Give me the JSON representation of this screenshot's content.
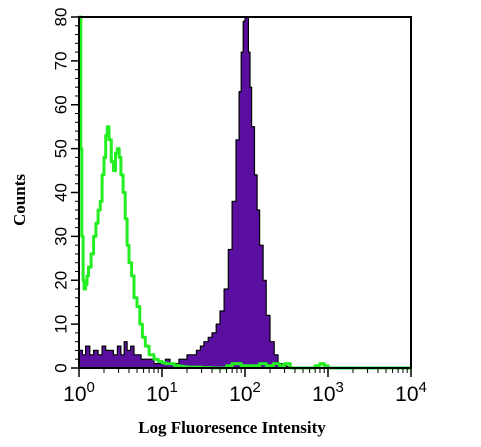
{
  "chart_data": {
    "type": "area",
    "title": "",
    "xlabel": "Log Fluoresence Intensity",
    "ylabel": "Counts",
    "xscale": "log",
    "xlim": [
      1,
      10000
    ],
    "ylim": [
      0,
      80
    ],
    "grid": false,
    "legend": "none",
    "x_ticks": [
      {
        "value": 1,
        "base": "10",
        "exp": "0"
      },
      {
        "value": 10,
        "base": "10",
        "exp": "1"
      },
      {
        "value": 100,
        "base": "10",
        "exp": "2"
      },
      {
        "value": 1000,
        "base": "10",
        "exp": "3"
      },
      {
        "value": 10000,
        "base": "10",
        "exp": "4"
      }
    ],
    "y_ticks": [
      0,
      10,
      20,
      30,
      40,
      50,
      60,
      70,
      80
    ],
    "series": [
      {
        "style": "filled",
        "color": "#5a0fa0",
        "x": [
          1,
          1.1,
          1.2,
          1.35,
          1.5,
          1.7,
          1.9,
          2.1,
          2.3,
          2.6,
          2.9,
          3.2,
          3.5,
          3.8,
          4.2,
          4.6,
          5.1,
          5.6,
          6.2,
          7,
          8,
          9,
          10,
          11,
          12.5,
          14,
          16,
          18,
          20,
          23,
          26,
          29,
          32,
          36,
          40,
          45,
          50,
          56,
          63,
          70,
          78,
          85,
          90,
          95,
          100,
          105,
          110,
          115,
          120,
          130,
          140,
          150,
          165,
          180,
          200,
          225,
          250,
          280,
          320,
          360,
          400,
          450,
          500,
          560,
          630,
          700,
          800,
          900,
          1000,
          10000
        ],
        "values": [
          4,
          3,
          5,
          3,
          4,
          3,
          5,
          4,
          4,
          3,
          5,
          3,
          6,
          4,
          5,
          3,
          3,
          2,
          2,
          2,
          1,
          1,
          1,
          2,
          1,
          1,
          2,
          2,
          3,
          3,
          4,
          5,
          6,
          7,
          8,
          10,
          13,
          18,
          27,
          38,
          52,
          63,
          72,
          79,
          80,
          80,
          72,
          64,
          55,
          44,
          36,
          28,
          20,
          12,
          6,
          3,
          1,
          0.5,
          0.3,
          0,
          0,
          0,
          0,
          0,
          0,
          0,
          0,
          0,
          0,
          0
        ]
      },
      {
        "style": "line",
        "color": "#22ee22",
        "x": [
          1,
          1.05,
          1.08,
          1.12,
          1.15,
          1.2,
          1.25,
          1.3,
          1.4,
          1.5,
          1.6,
          1.7,
          1.8,
          1.9,
          2,
          2.1,
          2.2,
          2.3,
          2.45,
          2.6,
          2.75,
          2.9,
          3.05,
          3.2,
          3.4,
          3.6,
          3.8,
          4,
          4.3,
          4.6,
          5,
          5.4,
          5.8,
          6.3,
          7,
          8,
          9,
          10,
          11,
          12,
          14,
          16,
          18,
          20,
          25,
          30,
          40,
          50,
          60,
          70,
          80,
          90,
          100,
          120,
          150,
          180,
          220,
          260,
          300,
          350,
          400,
          500,
          600,
          700,
          800,
          900,
          1000,
          2000,
          5000,
          10000
        ],
        "values": [
          80,
          50,
          30,
          20,
          18,
          19,
          21,
          23,
          26,
          30,
          33,
          36,
          38,
          44,
          48,
          53,
          55,
          52,
          47,
          45,
          49,
          50,
          48,
          44,
          40,
          34,
          28,
          24,
          21,
          16,
          14,
          10,
          7,
          5,
          3,
          2,
          1.5,
          1.2,
          1,
          1,
          0.6,
          0.4,
          0.3,
          0.2,
          0.2,
          0.1,
          0,
          0,
          0.5,
          1,
          1,
          0.5,
          0.5,
          0.5,
          1,
          0.5,
          1,
          0.5,
          1,
          0,
          0,
          0,
          0,
          0.5,
          1,
          0.5,
          0,
          0,
          0,
          0
        ]
      }
    ]
  }
}
